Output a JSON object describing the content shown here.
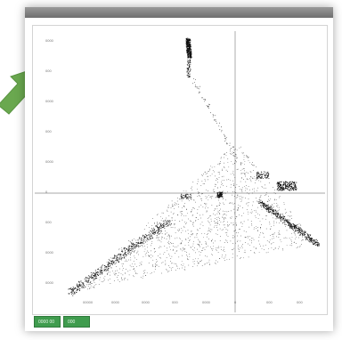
{
  "plot": {
    "axis_color": "#8a8a8a",
    "point_color": "#111111",
    "y_tick_labels": [
      "0000",
      "000",
      "0000",
      "000",
      "0000",
      "0",
      "000",
      "0000",
      "0000"
    ],
    "x_tick_labels": [
      "00000",
      "0000",
      "0000",
      "000",
      "0000",
      "0",
      "000",
      "000"
    ]
  },
  "status_bar": {
    "buttons": [
      {
        "label": "0000 00"
      },
      {
        "label": "000"
      }
    ],
    "color": "#3f9c4e"
  },
  "arrow": {
    "color": "#6aa84f",
    "icon": "arrow-pointer-icon"
  }
}
